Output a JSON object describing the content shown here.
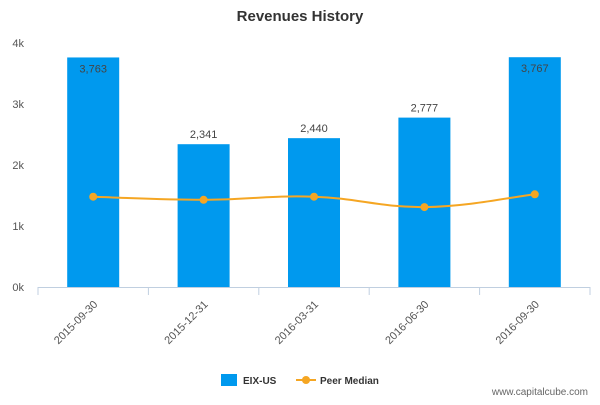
{
  "chart_data": {
    "type": "bar",
    "title": "Revenues History",
    "categories": [
      "2015-09-30",
      "2015-12-31",
      "2016-03-31",
      "2016-06-30",
      "2016-09-30"
    ],
    "series": [
      {
        "name": "EIX-US",
        "type": "bar",
        "values": [
          3763,
          2341,
          2440,
          2777,
          3767
        ],
        "labels": [
          "3,763",
          "2,341",
          "2,440",
          "2,777",
          "3,767"
        ],
        "color": "#0099ee"
      },
      {
        "name": "Peer Median",
        "type": "line",
        "values": [
          1480,
          1430,
          1480,
          1310,
          1520
        ],
        "color": "#f5a623"
      }
    ],
    "ylim": [
      0,
      4000
    ],
    "yticks": [
      0,
      1000,
      2000,
      3000,
      4000
    ],
    "ytick_labels": [
      "0k",
      "1k",
      "2k",
      "3k",
      "4k"
    ],
    "xlabel": "",
    "ylabel": "",
    "grid": false,
    "legend_position": "bottom-center"
  },
  "footer": {
    "source": "www.capitalcube.com"
  }
}
